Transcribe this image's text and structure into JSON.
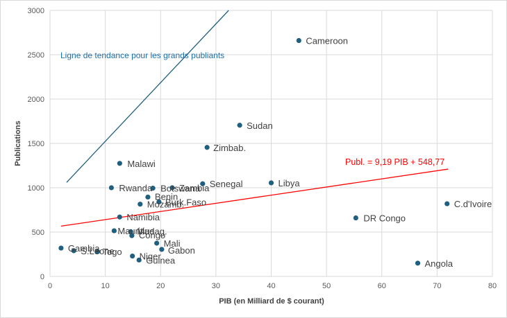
{
  "chart_data": {
    "type": "scatter",
    "xlabel": "PIB (en Milliard de $ courant)",
    "ylabel": "Publications",
    "xlim": [
      0,
      80
    ],
    "ylim": [
      0,
      3000
    ],
    "xticks": [
      "0",
      "10",
      "20",
      "30",
      "40",
      "50",
      "60",
      "70",
      "80"
    ],
    "yticks": [
      "0",
      "500",
      "1000",
      "1500",
      "2000",
      "2500",
      "3000"
    ],
    "grid": "vertical-and-horizontal",
    "point_color": "#1f5f7f",
    "points": [
      {
        "label": "Cameroon",
        "x": 45,
        "y": 2660
      },
      {
        "label": "Sudan",
        "x": 34.3,
        "y": 1705
      },
      {
        "label": "Zimbab.",
        "x": 28.4,
        "y": 1455
      },
      {
        "label": "Malawi",
        "x": 12.6,
        "y": 1275
      },
      {
        "label": "Libya",
        "x": 40,
        "y": 1055
      },
      {
        "label": "Senegal",
        "x": 27.6,
        "y": 1045
      },
      {
        "label": "Rwanda",
        "x": 11.1,
        "y": 1000
      },
      {
        "label": "Botswana",
        "x": 18.6,
        "y": 995
      },
      {
        "label": "Zambia",
        "x": 22.1,
        "y": 1000
      },
      {
        "label": "Benin",
        "x": 17.7,
        "y": 895
      },
      {
        "label": "Burk.Faso",
        "x": 19.7,
        "y": 840
      },
      {
        "label": "Mozamb.",
        "x": 16.3,
        "y": 815
      },
      {
        "label": "C.d'Ivoire",
        "x": 71.8,
        "y": 820
      },
      {
        "label": "Namibia",
        "x": 12.6,
        "y": 670
      },
      {
        "label": "DR Congo",
        "x": 55.3,
        "y": 660
      },
      {
        "label": "Mauritius",
        "x": 11.6,
        "y": 515
      },
      {
        "label": "Madag.",
        "x": 14.6,
        "y": 505
      },
      {
        "label": "Congo",
        "x": 14.8,
        "y": 460
      },
      {
        "label": "Mali",
        "x": 19.3,
        "y": 375
      },
      {
        "label": "Gambia",
        "x": 2,
        "y": 320
      },
      {
        "label": "S.Leone",
        "x": 4.3,
        "y": 290
      },
      {
        "label": "Togo",
        "x": 8.6,
        "y": 280
      },
      {
        "label": "Gabon",
        "x": 20.2,
        "y": 305
      },
      {
        "label": "Niger",
        "x": 14.9,
        "y": 230
      },
      {
        "label": "Guinea",
        "x": 16.1,
        "y": 185
      },
      {
        "label": "Angola",
        "x": 66.5,
        "y": 150
      }
    ],
    "trendlines": [
      {
        "name": "overall",
        "label": "Publ. = 9,19 PIB + 548,77",
        "slope": 9.19,
        "intercept": 548.77,
        "x_range": [
          2,
          72
        ],
        "color": "#ff0000"
      },
      {
        "name": "large-publishers",
        "label": "Ligne de tendance pour les grands publiants",
        "x_range": [
          3,
          32.3
        ],
        "y_range": [
          1060,
          3000
        ],
        "color": "#1f5f7f"
      }
    ]
  }
}
